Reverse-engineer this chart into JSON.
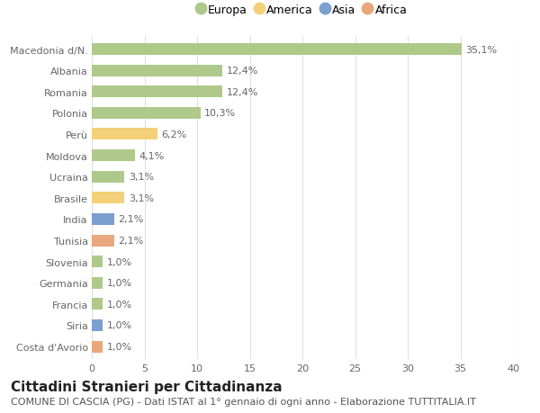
{
  "categories": [
    "Macedonia d/N.",
    "Albania",
    "Romania",
    "Polonia",
    "Perù",
    "Moldova",
    "Ucraina",
    "Brasile",
    "India",
    "Tunisia",
    "Slovenia",
    "Germania",
    "Francia",
    "Siria",
    "Costa d'Avorio"
  ],
  "values": [
    35.1,
    12.4,
    12.4,
    10.3,
    6.2,
    4.1,
    3.1,
    3.1,
    2.1,
    2.1,
    1.0,
    1.0,
    1.0,
    1.0,
    1.0
  ],
  "labels": [
    "35,1%",
    "12,4%",
    "12,4%",
    "10,3%",
    "6,2%",
    "4,1%",
    "3,1%",
    "3,1%",
    "2,1%",
    "2,1%",
    "1,0%",
    "1,0%",
    "1,0%",
    "1,0%",
    "1,0%"
  ],
  "continents": [
    "Europa",
    "Europa",
    "Europa",
    "Europa",
    "America",
    "Europa",
    "Europa",
    "America",
    "Asia",
    "Africa",
    "Europa",
    "Europa",
    "Europa",
    "Asia",
    "Africa"
  ],
  "continent_colors": {
    "Europa": "#aec98a",
    "America": "#f5d07a",
    "Asia": "#7b9fcf",
    "Africa": "#e8a87c"
  },
  "legend_order": [
    "Europa",
    "America",
    "Asia",
    "Africa"
  ],
  "xlim": [
    0,
    40
  ],
  "xticks": [
    0,
    5,
    10,
    15,
    20,
    25,
    30,
    35,
    40
  ],
  "title": "Cittadini Stranieri per Cittadinanza",
  "subtitle": "COMUNE DI CASCIA (PG) - Dati ISTAT al 1° gennaio di ogni anno - Elaborazione TUTTITALIA.IT",
  "bg_color": "#ffffff",
  "grid_color": "#e0e0e0",
  "bar_height": 0.55,
  "label_fontsize": 8,
  "tick_fontsize": 8,
  "title_fontsize": 11,
  "subtitle_fontsize": 8
}
